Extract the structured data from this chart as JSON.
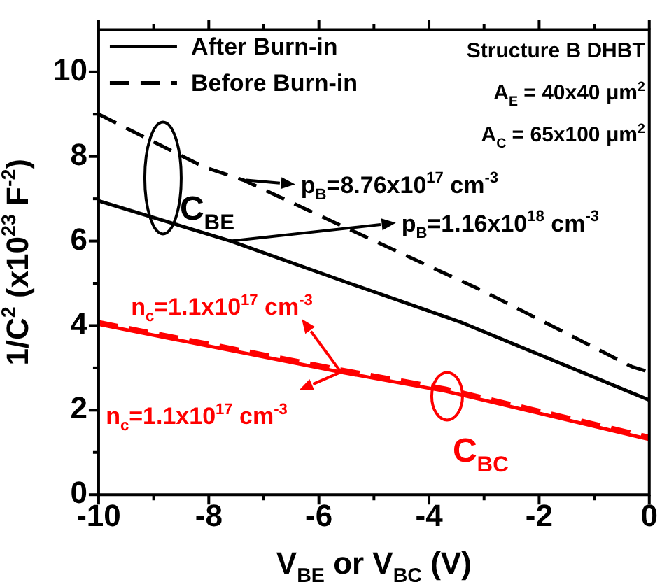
{
  "chart_data": {
    "type": "line",
    "xlabel": "V$_{BE}$ or V$_{BC}$ (V)",
    "ylabel": "1/C$^{2}$ (x10$^{23}$ F$^{-2}$)",
    "series": [
      {
        "name": "After Burn-in",
        "color": "#000000",
        "line_style": "solid",
        "x": [
          -10,
          -7.6,
          -5.55,
          -3.44,
          0
        ],
        "values": [
          6.95,
          6.0,
          5.05,
          4.09,
          2.24
        ]
      },
      {
        "name": "Before Burn-in",
        "color": "#000000",
        "line_style": "dashed",
        "x": [
          -10,
          -8.1,
          -7.37,
          -5.9,
          -3.02,
          -0.32,
          0
        ],
        "values": [
          9.0,
          7.76,
          7.44,
          6.55,
          4.82,
          3.03,
          2.9
        ]
      },
      {
        "color": "#ff0000",
        "line_style": "solid",
        "x": [
          -10,
          -5.6,
          -3.7,
          0
        ],
        "values": [
          4.03,
          2.9,
          2.45,
          1.31
        ]
      },
      {
        "color": "#ff0000",
        "line_style": "dashed",
        "x": [
          -10,
          -5.6,
          -3.7,
          0
        ],
        "values": [
          4.09,
          2.97,
          2.52,
          1.38
        ]
      }
    ],
    "xlim": [
      -10,
      0
    ],
    "xticks": [
      -10,
      {
        "value": -9,
        "label": null
      },
      -8,
      {
        "value": -7,
        "label": null
      },
      -6,
      {
        "value": -5,
        "label": null
      },
      -4,
      {
        "value": -3,
        "label": null
      },
      -2,
      {
        "value": -1,
        "label": null
      },
      0
    ],
    "ylim": [
      0,
      11
    ],
    "yticks": [
      0,
      {
        "value": 1,
        "label": null
      },
      2,
      {
        "value": 3,
        "label": null
      },
      4,
      {
        "value": 5,
        "label": null
      },
      6,
      {
        "value": 7,
        "label": null
      },
      8,
      {
        "value": 9,
        "label": null
      },
      10
    ],
    "grid": false,
    "legend": "top left",
    "annotations": [
      "Structure B DHBT",
      "A$_{E}$ = 40x40 μm$^{2}$",
      "A$_{C}$ = 65x100 μm$^{2}$",
      "C$_{BE}$",
      {
        "text": "p$_{B}$=8.76x10$^{17}$ cm$^{-3}$",
        "x": -7.32,
        "y": 7.44
      },
      {
        "text": "p$_{B}$=1.16x10$^{18}$ cm$^{-3}$",
        "x": -7.6,
        "y": 6.0
      },
      {
        "text": "n$_{c}$=1.1x10$^{17}$ cm$^{-3}$",
        "x": -5.6,
        "y": 2.9
      },
      {
        "text": "n$_{c}$=1.1x10$^{17}$ cm$^{-3}$",
        "x": -5.6,
        "y": 2.9
      },
      "C$_{BC}$"
    ]
  }
}
